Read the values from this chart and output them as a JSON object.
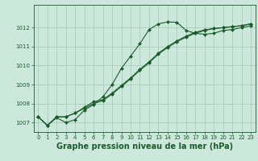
{
  "background_color": "#cce8dc",
  "grid_color": "#aaccbb",
  "line_color": "#1a5c2a",
  "marker_color": "#1a5c2a",
  "xlabel": "Graphe pression niveau de la mer (hPa)",
  "xlabel_fontsize": 7,
  "ylim": [
    1006.5,
    1013.2
  ],
  "xlim": [
    -0.5,
    23.5
  ],
  "yticks": [
    1007,
    1008,
    1009,
    1010,
    1011,
    1012
  ],
  "xticks": [
    0,
    1,
    2,
    3,
    4,
    5,
    6,
    7,
    8,
    9,
    10,
    11,
    12,
    13,
    14,
    15,
    16,
    17,
    18,
    19,
    20,
    21,
    22,
    23
  ],
  "series1": [
    1007.3,
    1006.85,
    1007.25,
    1007.0,
    1007.15,
    1007.65,
    1007.95,
    1008.35,
    1009.0,
    1009.85,
    1010.5,
    1011.15,
    1011.9,
    1012.2,
    1012.3,
    1012.28,
    1011.85,
    1011.7,
    1011.65,
    1011.7,
    1011.85,
    1011.9,
    1012.0,
    1012.1
  ],
  "series2": [
    1007.3,
    1006.85,
    1007.3,
    1007.3,
    1007.5,
    1007.75,
    1008.0,
    1008.15,
    1008.5,
    1008.9,
    1009.3,
    1009.75,
    1010.15,
    1010.6,
    1010.95,
    1011.25,
    1011.5,
    1011.7,
    1011.85,
    1011.95,
    1012.0,
    1012.05,
    1012.1,
    1012.2
  ],
  "series3": [
    1007.3,
    1006.85,
    1007.3,
    1007.3,
    1007.5,
    1007.8,
    1008.1,
    1008.2,
    1008.55,
    1008.95,
    1009.35,
    1009.8,
    1010.2,
    1010.65,
    1011.0,
    1011.3,
    1011.55,
    1011.75,
    1011.88,
    1011.95,
    1012.0,
    1012.05,
    1012.1,
    1012.2
  ]
}
